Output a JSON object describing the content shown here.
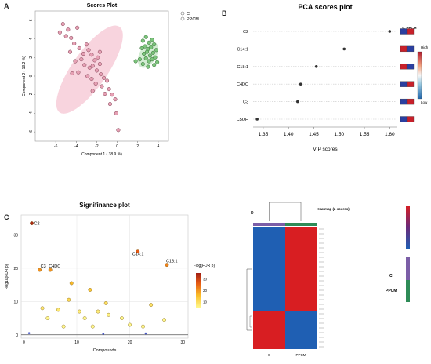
{
  "panels": {
    "a": {
      "letter": "A"
    },
    "b": {
      "letter": "B"
    },
    "c": {
      "letter": "C"
    },
    "d": {
      "letter": "D"
    }
  },
  "chart_data": [
    {
      "id": "A",
      "type": "scatter",
      "title": "Scores Plot",
      "xlabel": "Component 1 ( 38.9 %)",
      "ylabel": "Component 2 ( 13.2 %)",
      "xlim": [
        -8,
        5
      ],
      "ylim": [
        -7,
        7
      ],
      "xticks": [
        -6,
        -4,
        -2,
        0,
        2,
        4
      ],
      "yticks": [
        -6,
        -4,
        -2,
        0,
        2,
        4,
        6
      ],
      "legend": [
        "C",
        "PPCM"
      ],
      "colors": {
        "C": "#e889a3",
        "PPCM": "#5cb85c",
        "C_fill": "#f4b8c8",
        "PPCM_fill": "#b5e0b5"
      },
      "ellipses": [
        {
          "group": "C",
          "cx": -2.7,
          "cy": 0.7,
          "rx": 5.1,
          "ry": 1.9,
          "angle_deg": -55
        },
        {
          "group": "PPCM",
          "cx": 3.0,
          "cy": 2.3,
          "rx": 1.4,
          "ry": 0.9,
          "angle_deg": -60
        }
      ],
      "series": [
        {
          "name": "C",
          "points": [
            [
              -5.6,
              4.7
            ],
            [
              -5.3,
              5.6
            ],
            [
              -5.0,
              4.3
            ],
            [
              -4.8,
              5.0
            ],
            [
              -4.5,
              4.1
            ],
            [
              -4.2,
              3.5
            ],
            [
              -3.9,
              5.2
            ],
            [
              -3.7,
              3.0
            ],
            [
              -4.6,
              2.6
            ],
            [
              -3.3,
              2.4
            ],
            [
              -3.0,
              3.4
            ],
            [
              -2.8,
              2.8
            ],
            [
              -2.5,
              2.3
            ],
            [
              -4.1,
              1.6
            ],
            [
              -3.5,
              1.8
            ],
            [
              -2.2,
              1.7
            ],
            [
              -1.9,
              2.0
            ],
            [
              -3.2,
              1.2
            ],
            [
              -2.7,
              0.9
            ],
            [
              -2.4,
              1.1
            ],
            [
              -2.0,
              0.6
            ],
            [
              -1.7,
              1.3
            ],
            [
              -4.4,
              0.3
            ],
            [
              -3.8,
              0.4
            ],
            [
              -2.9,
              0.0
            ],
            [
              -2.5,
              -0.3
            ],
            [
              -1.6,
              0.2
            ],
            [
              -1.3,
              -0.2
            ],
            [
              -2.1,
              -0.8
            ],
            [
              -1.5,
              -1.1
            ],
            [
              -1.0,
              -0.5
            ],
            [
              -0.8,
              -1.4
            ],
            [
              -1.2,
              -1.9
            ],
            [
              -0.5,
              -2.0
            ],
            [
              -2.4,
              -1.6
            ],
            [
              -0.7,
              -3.0
            ],
            [
              -0.2,
              -2.5
            ],
            [
              -0.1,
              -4.0
            ],
            [
              0.1,
              -5.8
            ],
            [
              -1.7,
              2.6
            ]
          ]
        },
        {
          "name": "PPCM",
          "points": [
            [
              2.5,
              3.8
            ],
            [
              2.8,
              4.2
            ],
            [
              3.1,
              3.6
            ],
            [
              3.4,
              3.9
            ],
            [
              2.4,
              3.0
            ],
            [
              2.7,
              3.2
            ],
            [
              3.0,
              2.9
            ],
            [
              3.3,
              3.1
            ],
            [
              3.6,
              3.4
            ],
            [
              2.6,
              2.4
            ],
            [
              2.9,
              2.6
            ],
            [
              3.2,
              2.2
            ],
            [
              3.5,
              2.5
            ],
            [
              3.8,
              2.8
            ],
            [
              2.2,
              1.8
            ],
            [
              2.8,
              1.9
            ],
            [
              3.1,
              1.6
            ],
            [
              3.4,
              1.8
            ],
            [
              3.7,
              2.0
            ],
            [
              3.9,
              1.5
            ],
            [
              2.5,
              1.3
            ],
            [
              3.0,
              1.0
            ],
            [
              3.6,
              1.2
            ],
            [
              1.8,
              1.6
            ]
          ]
        }
      ]
    },
    {
      "id": "B",
      "type": "scatter",
      "title": "PCA scores plot",
      "xlabel": "VIP scores",
      "ylabel": "",
      "xlim": [
        1.33,
        1.615
      ],
      "xticks": [
        1.35,
        1.4,
        1.45,
        1.5,
        1.55,
        1.6
      ],
      "categories": [
        "C2",
        "C14:1",
        "C18:1",
        "C4DC",
        "C3",
        "C5OH"
      ],
      "values": [
        1.6,
        1.51,
        1.455,
        1.424,
        1.418,
        1.338
      ],
      "legend_cols": [
        "C",
        "PPCM"
      ],
      "cells": [
        [
          "blue",
          "red"
        ],
        [
          "red",
          "blue"
        ],
        [
          "red",
          "blue"
        ],
        [
          "blue",
          "red"
        ],
        [
          "blue",
          "red"
        ],
        [
          "blue",
          "red"
        ]
      ],
      "scale_labels": {
        "high": "High",
        "low": "Low"
      }
    },
    {
      "id": "C",
      "type": "scatter",
      "title": "Signifinance plot",
      "xlabel": "Compounds",
      "ylabel": "-log10(FDR p)",
      "xlim": [
        -0.5,
        31
      ],
      "ylim": [
        -1,
        36
      ],
      "xticks": [
        0,
        10,
        20,
        30
      ],
      "yticks": [
        0,
        10,
        20,
        30
      ],
      "colorbar_title": "-log(FDR p)",
      "colorbar_ticks": [
        10,
        20,
        30
      ],
      "points": [
        {
          "x": 1.5,
          "y": 33.5,
          "label": "C2"
        },
        {
          "x": 3,
          "y": 19.5,
          "label": "C3"
        },
        {
          "x": 5,
          "y": 19.5,
          "label": "C4DC"
        },
        {
          "x": 21.5,
          "y": 25,
          "label": "C14:1"
        },
        {
          "x": 27,
          "y": 21,
          "label": "C18:1"
        },
        {
          "x": 9,
          "y": 15.5
        },
        {
          "x": 12.5,
          "y": 13.5
        },
        {
          "x": 15.5,
          "y": 9.5
        },
        {
          "x": 24,
          "y": 9
        },
        {
          "x": 8.5,
          "y": 10.5
        },
        {
          "x": 3.5,
          "y": 8
        },
        {
          "x": 6.5,
          "y": 7.5
        },
        {
          "x": 10.5,
          "y": 7
        },
        {
          "x": 14,
          "y": 7
        },
        {
          "x": 16,
          "y": 6
        },
        {
          "x": 4.5,
          "y": 5
        },
        {
          "x": 11.5,
          "y": 5
        },
        {
          "x": 18.5,
          "y": 5
        },
        {
          "x": 26.5,
          "y": 4.5
        },
        {
          "x": 7.5,
          "y": 2.5
        },
        {
          "x": 13,
          "y": 2.5
        },
        {
          "x": 20,
          "y": 3
        },
        {
          "x": 22.5,
          "y": 2.5
        },
        {
          "x": 1,
          "y": 0.5,
          "insignificant": true
        },
        {
          "x": 15,
          "y": 0.3,
          "insignificant": true
        },
        {
          "x": 23,
          "y": 0.4,
          "insignificant": true
        }
      ]
    },
    {
      "id": "D",
      "type": "heatmap",
      "title": "Heatmap (z-scores)",
      "columns": [
        "C",
        "PPCM"
      ],
      "legend": [
        "C",
        "PPCM"
      ],
      "group_colors": {
        "C": "#7b5ea7",
        "PPCM": "#2e8b57"
      },
      "row_count": 26,
      "top_rows": 18,
      "matrix": [
        [
          "blue",
          "red"
        ],
        [
          "red",
          "blue"
        ]
      ]
    }
  ]
}
